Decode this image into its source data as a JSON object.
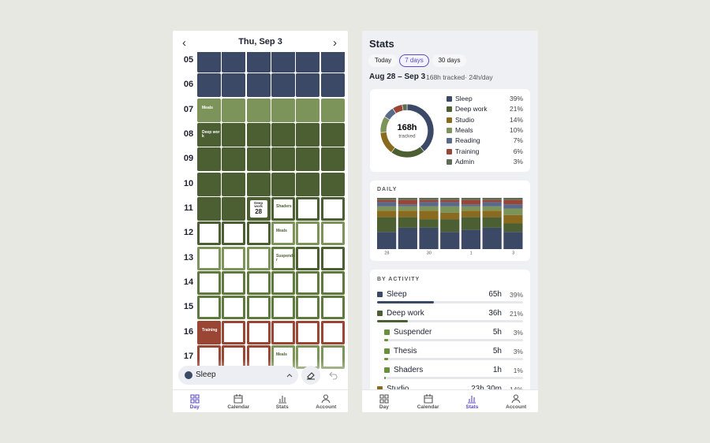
{
  "day": {
    "prev": "‹",
    "title": "Thu, Sep 3",
    "next": "›",
    "rows": [
      {
        "hour": "05",
        "cells": [
          {
            "fill": "#3b4866"
          },
          {
            "fill": "#3b4866"
          },
          {
            "fill": "#3b4866"
          },
          {
            "fill": "#3b4866"
          },
          {
            "fill": "#3b4866"
          },
          {
            "fill": "#3b4866"
          }
        ]
      },
      {
        "hour": "06",
        "cells": [
          {
            "fill": "#3b4866"
          },
          {
            "fill": "#3b4866"
          },
          {
            "fill": "#3b4866"
          },
          {
            "fill": "#3b4866"
          },
          {
            "fill": "#3b4866"
          },
          {
            "fill": "#3b4866"
          }
        ]
      },
      {
        "hour": "07",
        "cells": [
          {
            "fill": "#7c9459",
            "label": "Meals"
          },
          {
            "fill": "#7c9459"
          },
          {
            "fill": "#7c9459"
          },
          {
            "fill": "#7c9459"
          },
          {
            "fill": "#7c9459"
          },
          {
            "fill": "#7c9459"
          }
        ]
      },
      {
        "hour": "08",
        "cells": [
          {
            "fill": "#4b5f33",
            "label": "Deep work"
          },
          {
            "fill": "#4b5f33"
          },
          {
            "fill": "#4b5f33"
          },
          {
            "fill": "#4b5f33"
          },
          {
            "fill": "#4b5f33"
          },
          {
            "fill": "#4b5f33"
          }
        ]
      },
      {
        "hour": "09",
        "cells": [
          {
            "fill": "#4b5f33"
          },
          {
            "fill": "#4b5f33"
          },
          {
            "fill": "#4b5f33"
          },
          {
            "fill": "#4b5f33"
          },
          {
            "fill": "#4b5f33"
          },
          {
            "fill": "#4b5f33"
          }
        ]
      },
      {
        "hour": "10",
        "cells": [
          {
            "fill": "#4b5f33"
          },
          {
            "fill": "#4b5f33"
          },
          {
            "fill": "#4b5f33"
          },
          {
            "fill": "#4b5f33"
          },
          {
            "fill": "#4b5f33"
          },
          {
            "fill": "#4b5f33"
          }
        ]
      },
      {
        "hour": "11",
        "cells": [
          {
            "fill": "#4b5f33"
          },
          {
            "fill": "#4b5f33"
          },
          {
            "fill": "#4b5f33",
            "label": "Deep work",
            "badge": "28"
          },
          {
            "outline": "#4b5f33",
            "label": "Shaders"
          },
          {
            "outline": "#4b5f33"
          },
          {
            "outline": "#4b5f33"
          }
        ]
      },
      {
        "hour": "12",
        "cells": [
          {
            "outline": "#4b5f33"
          },
          {
            "outline": "#4b5f33"
          },
          {
            "outline": "#4b5f33"
          },
          {
            "outline": "#7c9459",
            "label": "Meals"
          },
          {
            "outline": "#7c9459"
          },
          {
            "outline": "#7c9459"
          }
        ]
      },
      {
        "hour": "13",
        "cells": [
          {
            "outline": "#7c9459"
          },
          {
            "outline": "#7c9459"
          },
          {
            "outline": "#7c9459"
          },
          {
            "outline": "#5e7a3e",
            "label": "Suspender"
          },
          {
            "outline": "#4b5f33"
          },
          {
            "outline": "#4b5f33"
          }
        ]
      },
      {
        "hour": "14",
        "cells": [
          {
            "outline": "#5e7a3e"
          },
          {
            "outline": "#5e7a3e"
          },
          {
            "outline": "#5e7a3e"
          },
          {
            "outline": "#5e7a3e"
          },
          {
            "outline": "#5e7a3e"
          },
          {
            "outline": "#5e7a3e"
          }
        ]
      },
      {
        "hour": "15",
        "cells": [
          {
            "outline": "#5e7a3e"
          },
          {
            "outline": "#5e7a3e"
          },
          {
            "outline": "#5e7a3e"
          },
          {
            "outline": "#5e7a3e"
          },
          {
            "outline": "#5e7a3e"
          },
          {
            "outline": "#5e7a3e"
          }
        ]
      },
      {
        "hour": "16",
        "cells": [
          {
            "fill": "#9b4535",
            "label": "Training"
          },
          {
            "outline": "#9b4535"
          },
          {
            "outline": "#9b4535"
          },
          {
            "outline": "#9b4535"
          },
          {
            "outline": "#9b4535"
          },
          {
            "outline": "#9b4535"
          }
        ]
      },
      {
        "hour": "17",
        "cells": [
          {
            "outline": "#9b4535"
          },
          {
            "outline": "#9b4535"
          },
          {
            "outline": "#9b4535"
          },
          {
            "outline": "#7c9459",
            "label": "Meals"
          },
          {
            "outline": "#7c9459"
          },
          {
            "outline": "#7c9459"
          }
        ]
      }
    ],
    "picker": {
      "label": "Sleep",
      "color": "#3b4866"
    },
    "active_tab": 0
  },
  "tabs": [
    "Day",
    "Calendar",
    "Stats",
    "Account"
  ],
  "stats": {
    "title": "Stats",
    "ranges": [
      "Today",
      "7 days",
      "30 days"
    ],
    "active_range": 1,
    "period": "Aug 28 – Sep 3",
    "summary": "168h tracked· 24h/day",
    "donut": {
      "type": "pie",
      "center": "168h",
      "center_sub": "tracked",
      "items": [
        {
          "name": "Sleep",
          "color": "#3b4866",
          "value": 39,
          "value_label": "39%"
        },
        {
          "name": "Deep work",
          "color": "#4b5f33",
          "value": 21,
          "value_label": "21%"
        },
        {
          "name": "Studio",
          "color": "#8a6a1f",
          "value": 14,
          "value_label": "14%"
        },
        {
          "name": "Meals",
          "color": "#7c9459",
          "value": 10,
          "value_label": "10%"
        },
        {
          "name": "Reading",
          "color": "#5a6a8a",
          "value": 7,
          "value_label": "7%"
        },
        {
          "name": "Training",
          "color": "#9b4535",
          "value": 6,
          "value_label": "6%"
        },
        {
          "name": "Admin",
          "color": "#5e6b55",
          "value": 3,
          "value_label": "3%"
        }
      ]
    },
    "daily": {
      "type": "bar",
      "stacked": true,
      "title": "DAILY",
      "categories": [
        "28",
        null,
        "30",
        null,
        "1",
        null,
        "3"
      ],
      "ylim": [
        0,
        24
      ],
      "series": [
        {
          "values": [
            8,
            10,
            10,
            8,
            9,
            10,
            8
          ]
        },
        {
          "values": [
            7,
            5,
            4,
            6,
            6,
            5,
            4
          ]
        },
        {
          "values": [
            3,
            3,
            4,
            3,
            3,
            3,
            4
          ]
        },
        {
          "values": [
            2,
            2,
            2,
            3,
            2,
            2,
            3
          ]
        },
        {
          "values": [
            2,
            1,
            2,
            2,
            1,
            2,
            2
          ]
        },
        {
          "values": [
            1,
            2,
            1,
            1,
            2,
            1,
            2
          ]
        },
        {
          "values": [
            1,
            1,
            1,
            1,
            1,
            1,
            1
          ]
        }
      ]
    },
    "by_activity": {
      "title": "BY ACTIVITY",
      "items": [
        {
          "name": "Sleep",
          "color": "#3b4866",
          "hours": 65,
          "hours_label": "65h",
          "pct": 39,
          "pct_label": "39%"
        },
        {
          "name": "Deep work",
          "color": "#4b5f33",
          "hours": 36,
          "hours_label": "36h",
          "pct": 21,
          "pct_label": "21%"
        },
        {
          "name": "Suspender",
          "color": "#6a8f3f",
          "child": true,
          "hours": 5,
          "hours_label": "5h",
          "pct": 3,
          "pct_label": "3%"
        },
        {
          "name": "Thesis",
          "color": "#6a8f3f",
          "child": true,
          "hours": 5,
          "hours_label": "5h",
          "pct": 3,
          "pct_label": "3%"
        },
        {
          "name": "Shaders",
          "color": "#6a8f3f",
          "child": true,
          "hours": 1,
          "hours_label": "1h",
          "pct": 1,
          "pct_label": "1%"
        },
        {
          "name": "Studio",
          "color": "#8a6a1f",
          "hours": 23.5,
          "hours_label": "23h 30m",
          "pct": 14,
          "pct_label": "14%"
        }
      ]
    },
    "active_tab": 2
  }
}
